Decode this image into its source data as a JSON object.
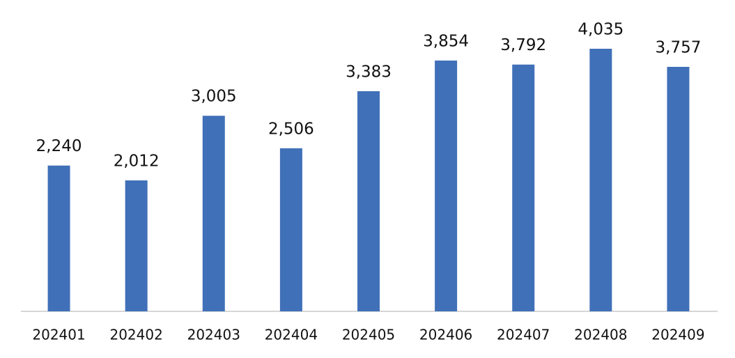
{
  "chart_data": {
    "type": "bar",
    "categories": [
      "202401",
      "202402",
      "202403",
      "202404",
      "202405",
      "202406",
      "202407",
      "202408",
      "202409"
    ],
    "values": [
      2240,
      2012,
      3005,
      2506,
      3383,
      3854,
      3792,
      4035,
      3757
    ],
    "value_labels": [
      "2,240",
      "2,012",
      "3,005",
      "2,506",
      "3,383",
      "3,854",
      "3,792",
      "4,035",
      "3,757"
    ],
    "color": "#4070b8"
  }
}
